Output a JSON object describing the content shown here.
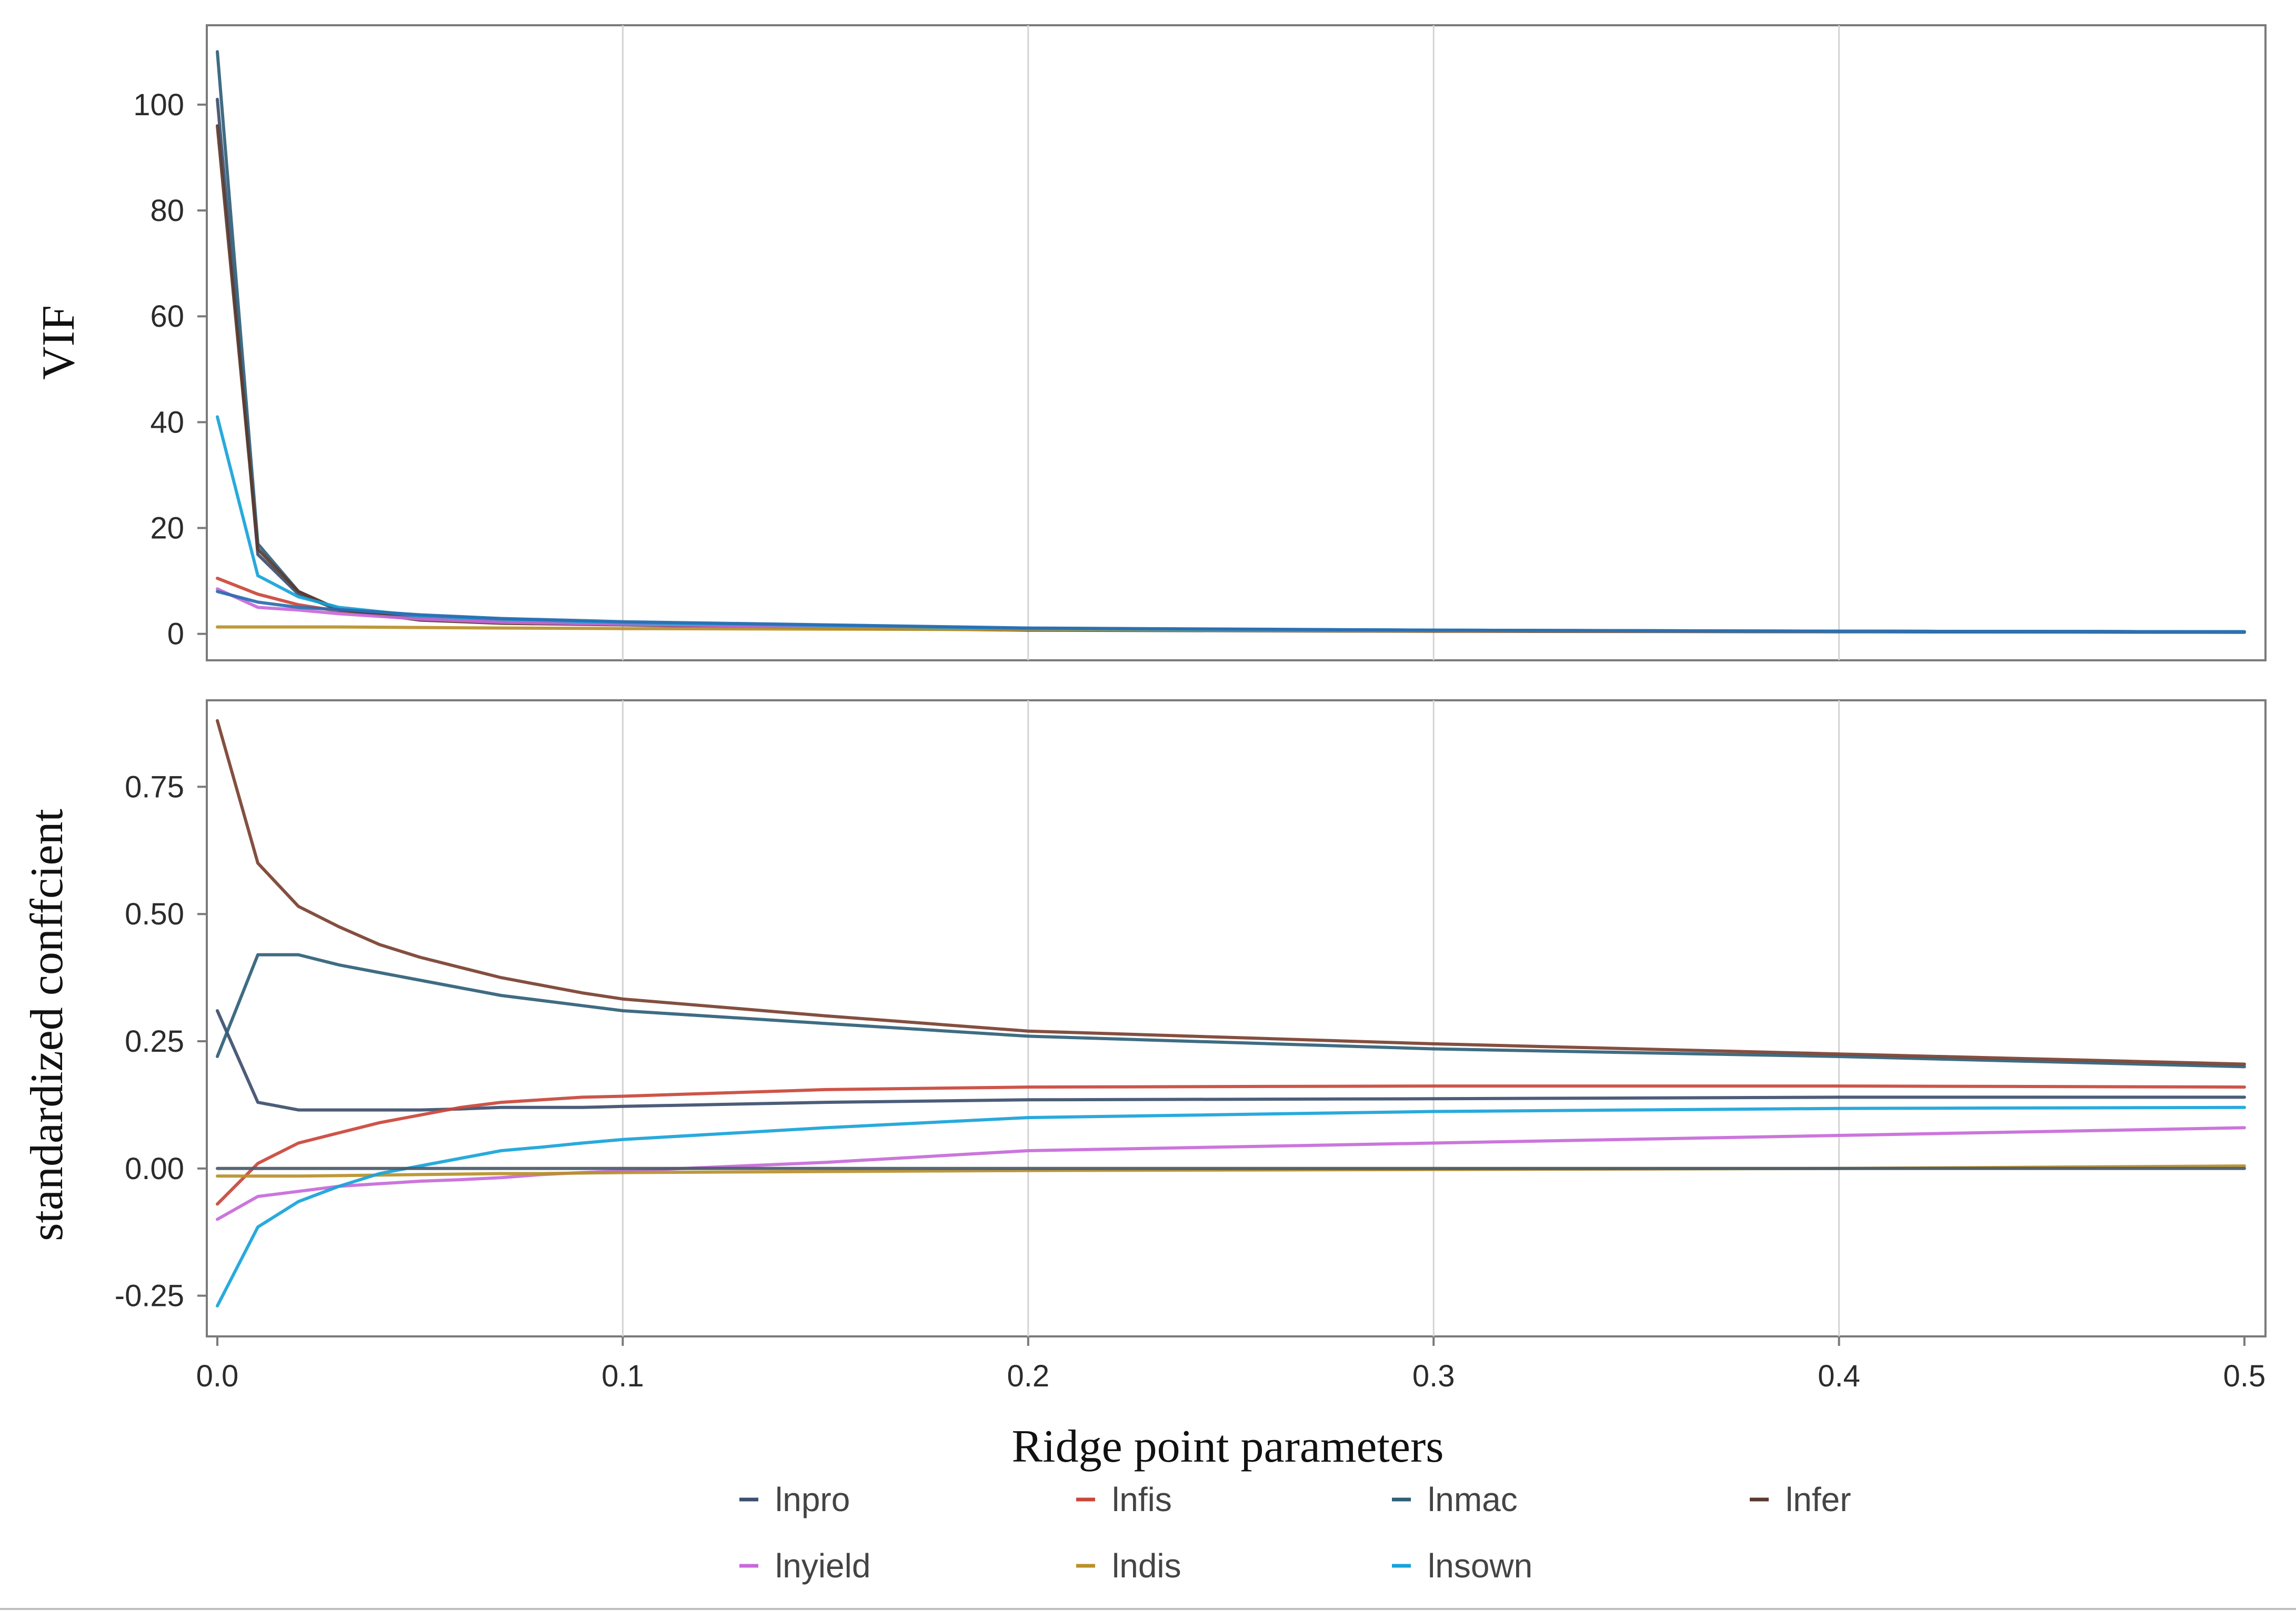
{
  "chart_data": [
    {
      "type": "line",
      "panel": "top",
      "title": "",
      "xlabel": "",
      "ylabel": "VIF",
      "xlim": [
        0,
        0.5
      ],
      "ylim": [
        -5,
        115
      ],
      "yticks": [
        0,
        20,
        40,
        60,
        80,
        100
      ],
      "ytick_labels": [
        "0",
        "20",
        "40",
        "60",
        "80",
        "100"
      ],
      "grid": "vertical",
      "x": [
        0,
        0.01,
        0.02,
        0.03,
        0.05,
        0.07,
        0.1,
        0.15,
        0.2,
        0.3,
        0.4,
        0.5
      ],
      "series": [
        {
          "name": "lnpro",
          "color": "#3d4f6e",
          "values": [
            101,
            15,
            7.5,
            4.5,
            3.0,
            2.2,
            1.8,
            1.2,
            0.8,
            0.6,
            0.5,
            0.4
          ]
        },
        {
          "name": "lnfis",
          "color": "#c9473a",
          "values": [
            10.5,
            7.5,
            5.5,
            4.3,
            3.0,
            2.4,
            1.9,
            1.3,
            0.9,
            0.6,
            0.5,
            0.4
          ]
        },
        {
          "name": "lnmac",
          "color": "#2f5f78",
          "values": [
            110,
            17,
            8,
            4.5,
            3.0,
            2.5,
            2.0,
            1.4,
            1.0,
            0.7,
            0.5,
            0.4
          ]
        },
        {
          "name": "lnfer",
          "color": "#5b3a2e",
          "values": [
            96,
            16,
            8,
            4.6,
            2.6,
            2.0,
            1.7,
            1.1,
            0.7,
            0.5,
            0.4,
            0.3
          ]
        },
        {
          "name": "lnyield",
          "color": "#c76ad9",
          "values": [
            8.5,
            5,
            4.5,
            3.8,
            2.8,
            2.2,
            1.8,
            1.3,
            0.9,
            0.6,
            0.5,
            0.4
          ]
        },
        {
          "name": "lndis",
          "color": "#b9902a",
          "values": [
            1.3,
            1.3,
            1.3,
            1.3,
            1.2,
            1.1,
            1.0,
            0.9,
            0.8,
            0.6,
            0.5,
            0.4
          ]
        },
        {
          "name": "lnsown",
          "color": "#17a3d9",
          "values": [
            41,
            11,
            7,
            5.0,
            3.4,
            2.8,
            2.1,
            1.6,
            1.0,
            0.7,
            0.5,
            0.4
          ]
        },
        {
          "name": "",
          "color": "#2a6cb0",
          "values": [
            8,
            6,
            5,
            4.6,
            3.6,
            2.9,
            2.3,
            1.7,
            1.1,
            0.7,
            0.5,
            0.4
          ]
        }
      ]
    },
    {
      "type": "line",
      "panel": "bottom",
      "title": "",
      "xlabel": "Ridge point parameters",
      "ylabel": "standardized conffcient",
      "xlim": [
        0,
        0.5
      ],
      "ylim": [
        -0.33,
        0.92
      ],
      "yticks": [
        -0.25,
        0,
        0.25,
        0.5,
        0.75
      ],
      "ytick_labels": [
        "-0.25",
        "0.00",
        "0.25",
        "0.50",
        "0.75"
      ],
      "xticks": [
        0,
        0.1,
        0.2,
        0.3,
        0.4,
        0.5
      ],
      "xtick_labels": [
        "0.0",
        "0.1",
        "0.2",
        "0.3",
        "0.4",
        "0.5"
      ],
      "grid": "vertical",
      "x": [
        0,
        0.01,
        0.02,
        0.03,
        0.04,
        0.05,
        0.06,
        0.07,
        0.08,
        0.09,
        0.1,
        0.15,
        0.2,
        0.3,
        0.4,
        0.5
      ],
      "series": [
        {
          "name": "lnpro",
          "color": "#3d4f6e",
          "values": [
            0.31,
            0.13,
            0.115,
            0.115,
            0.115,
            0.115,
            0.117,
            0.12,
            0.12,
            0.12,
            0.122,
            0.13,
            0.135,
            0.137,
            0.14,
            0.14
          ]
        },
        {
          "name": "lnfis",
          "color": "#c9473a",
          "values": [
            -0.07,
            0.01,
            0.05,
            0.07,
            0.09,
            0.105,
            0.12,
            0.13,
            0.135,
            0.14,
            0.142,
            0.155,
            0.16,
            0.162,
            0.162,
            0.16
          ]
        },
        {
          "name": "lnmac",
          "color": "#2f5f78",
          "values": [
            0.22,
            0.42,
            0.42,
            0.4,
            0.385,
            0.37,
            0.355,
            0.34,
            0.33,
            0.32,
            0.31,
            0.285,
            0.26,
            0.235,
            0.22,
            0.2
          ]
        },
        {
          "name": "lnfer",
          "color": "#7a4030",
          "values": [
            0.88,
            0.6,
            0.515,
            0.475,
            0.44,
            0.415,
            0.395,
            0.375,
            0.36,
            0.345,
            0.333,
            0.3,
            0.27,
            0.245,
            0.225,
            0.205
          ]
        },
        {
          "name": "lnyield",
          "color": "#c76ad9",
          "values": [
            -0.1,
            -0.055,
            -0.045,
            -0.035,
            -0.03,
            -0.025,
            -0.022,
            -0.018,
            -0.012,
            -0.008,
            -0.005,
            0.012,
            0.035,
            0.05,
            0.065,
            0.08
          ]
        },
        {
          "name": "lndis",
          "color": "#b9902a",
          "values": [
            -0.015,
            -0.015,
            -0.015,
            -0.014,
            -0.013,
            -0.012,
            -0.011,
            -0.01,
            -0.01,
            -0.009,
            -0.008,
            -0.006,
            -0.004,
            -0.002,
            0.0,
            0.005
          ]
        },
        {
          "name": "lnsown",
          "color": "#17a3d9",
          "values": [
            -0.27,
            -0.115,
            -0.065,
            -0.035,
            -0.01,
            0.005,
            0.02,
            0.035,
            0.042,
            0.05,
            0.057,
            0.08,
            0.1,
            0.112,
            0.118,
            0.12
          ]
        },
        {
          "name": "",
          "color": "#4a5a6a",
          "values": [
            0.0,
            0.0,
            0.0,
            0.0,
            0.0,
            0.0,
            0.0,
            0.0,
            0.0,
            0.0,
            0.0,
            0.0,
            0.0,
            0.0,
            0.0,
            0.0
          ]
        }
      ]
    }
  ],
  "legend": {
    "placement": "bottom",
    "entries": [
      {
        "label": "lnpro",
        "color": "#3d4f6e"
      },
      {
        "label": "lnfis",
        "color": "#c9473a"
      },
      {
        "label": "lnmac",
        "color": "#2f5f78"
      },
      {
        "label": "lnfer",
        "color": "#5b3a2e"
      },
      {
        "label": "lnyield",
        "color": "#c76ad9"
      },
      {
        "label": "lndis",
        "color": "#b9902a"
      },
      {
        "label": "lnsown",
        "color": "#17a3d9"
      }
    ]
  }
}
